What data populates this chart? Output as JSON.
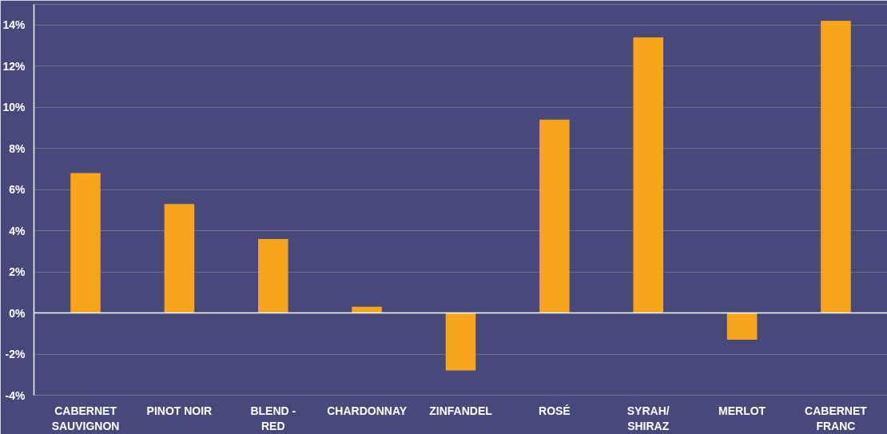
{
  "chart_data": {
    "type": "bar",
    "categories": [
      "CABERNET\nSAUVIGNON",
      "PINOT NOIR",
      "BLEND -\nRED",
      "CHARDONNAY",
      "ZINFANDEL",
      "ROSÉ",
      "SYRAH/\nSHIRAZ",
      "MERLOT",
      "CABERNET\nFRANC"
    ],
    "values": [
      6.8,
      5.3,
      3.6,
      0.3,
      -2.8,
      9.4,
      13.4,
      -1.3,
      14.2
    ],
    "color": "#f9a51b",
    "ylim": [
      -4,
      15
    ],
    "yticks": [
      {
        "value": -4,
        "label": "-4%"
      },
      {
        "value": -2,
        "label": "-2%"
      },
      {
        "value": 0,
        "label": "0%"
      },
      {
        "value": 2,
        "label": "2%"
      },
      {
        "value": 4,
        "label": "4%"
      },
      {
        "value": 6,
        "label": "6%"
      },
      {
        "value": 8,
        "label": "8%"
      },
      {
        "value": 10,
        "label": "10%"
      },
      {
        "value": 12,
        "label": "12%"
      },
      {
        "value": 14,
        "label": "14%"
      }
    ],
    "grid": "y"
  }
}
